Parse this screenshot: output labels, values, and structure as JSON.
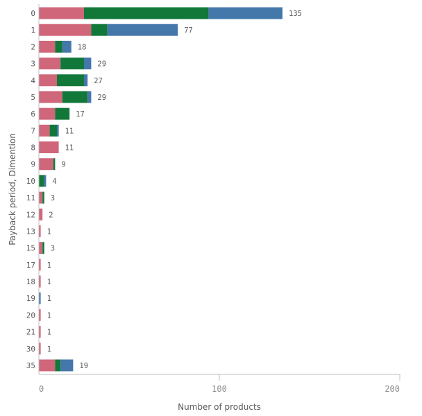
{
  "chart_data": {
    "type": "bar",
    "orientation": "horizontal",
    "stacked": true,
    "xlabel": "Number of products",
    "ylabel": "Payback period, Dimention",
    "xlim": [
      0,
      200
    ],
    "xticks": [
      "0",
      "100",
      "200"
    ],
    "xtick_values": [
      0,
      100,
      200
    ],
    "grid": false,
    "categories": [
      "0",
      "1",
      "2",
      "3",
      "4",
      "5",
      "6",
      "7",
      "8",
      "9",
      "10",
      "11",
      "12",
      "13",
      "15",
      "17",
      "18",
      "19",
      "20",
      "21",
      "30",
      "35"
    ],
    "series": [
      {
        "color": "#d0667a",
        "values": [
          25,
          29,
          9,
          12,
          10,
          13,
          9,
          6,
          11,
          8,
          0,
          2,
          2,
          1,
          2,
          1,
          1,
          0,
          1,
          1,
          1,
          9
        ]
      },
      {
        "color": "#12783a",
        "values": [
          69,
          9,
          4,
          13,
          15,
          14,
          8,
          4,
          0,
          1,
          3,
          1,
          0,
          0,
          1,
          0,
          0,
          0,
          0,
          0,
          0,
          3
        ]
      },
      {
        "color": "#4477aa",
        "values": [
          41,
          39,
          5,
          4,
          2,
          2,
          0,
          1,
          0,
          0,
          1,
          0,
          0,
          0,
          0,
          0,
          0,
          1,
          0,
          0,
          0,
          7
        ]
      }
    ],
    "totals": [
      "135",
      "77",
      "18",
      "29",
      "27",
      "29",
      "17",
      "11",
      "11",
      "9",
      "4",
      "3",
      "2",
      "1",
      "3",
      "1",
      "1",
      "1",
      "1",
      "1",
      "1",
      "19"
    ]
  }
}
